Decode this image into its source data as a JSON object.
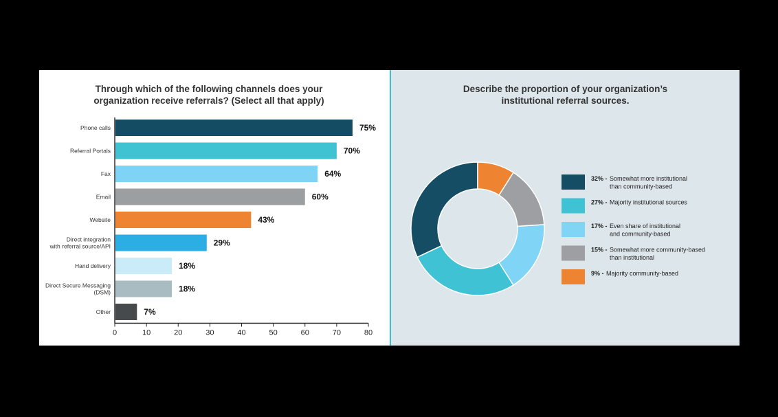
{
  "chart_data": [
    {
      "type": "bar",
      "orientation": "horizontal",
      "title": "Through which of the following channels does your\norganization receive referrals? (Select all that apply)",
      "categories": [
        "Phone calls",
        "Referral Portals",
        "Fax",
        "Email",
        "Website",
        "Direct integration\nwith referral source/API",
        "Hand delivery",
        "Direct Secure Messaging\n(DSM)",
        "Other"
      ],
      "values": [
        75,
        70,
        64,
        60,
        43,
        29,
        18,
        18,
        7
      ],
      "value_labels": [
        "75%",
        "70%",
        "64%",
        "60%",
        "43%",
        "29%",
        "18%",
        "18%",
        "7%"
      ],
      "colors": [
        "#144d63",
        "#3fc2d2",
        "#7fd4f5",
        "#9c9fa2",
        "#ee8432",
        "#2aaee4",
        "#c9ecf8",
        "#a9bcc2",
        "#474a4c"
      ],
      "xlim": [
        0,
        80
      ],
      "xticks": [
        0,
        10,
        20,
        30,
        40,
        50,
        60,
        70,
        80
      ],
      "grid": false
    },
    {
      "type": "pie",
      "subtype": "donut",
      "title": "Describe the proportion of your organization’s\ninstitutional referral sources.",
      "start": "top",
      "order": "counterclockwise",
      "slices": [
        {
          "pct": "32%",
          "value": 32,
          "text": "Somewhat more institutional\nthan community-based",
          "color": "#154e64"
        },
        {
          "pct": "27%",
          "value": 27,
          "text": "Majority institutional sources",
          "color": "#3fc2d3"
        },
        {
          "pct": "17%",
          "value": 17,
          "text": "Even share of institutional\nand community-based",
          "color": "#80d5f6"
        },
        {
          "pct": "15%",
          "value": 15,
          "text": "Somewhat more community-based\nthan institutional",
          "color": "#9d9fa2"
        },
        {
          "pct": "9%",
          "value": 9,
          "text": "Majority community-based",
          "color": "#ee8431"
        }
      ],
      "legend_position": "right"
    }
  ]
}
